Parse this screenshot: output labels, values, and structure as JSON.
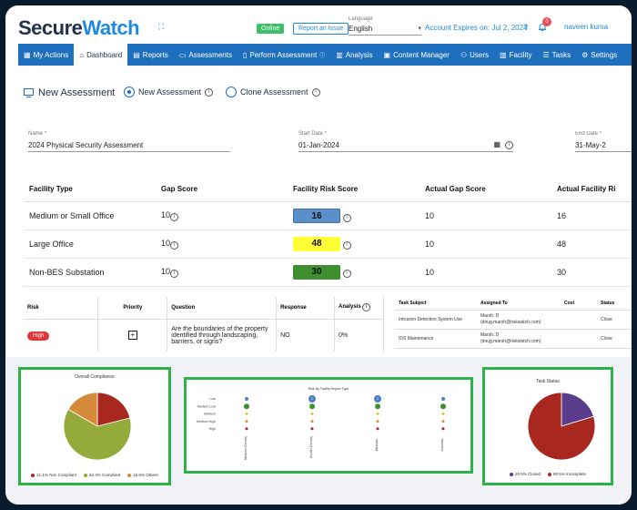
{
  "header": {
    "logo_part1": "Secure",
    "logo_part2": "Watch",
    "online": "Online",
    "report_issue": "Report an Issue",
    "language_label": "Language",
    "language_value": "English",
    "expires": "Account Expires on: Jul 2, 2024",
    "notifications": "0",
    "user": "naveen kuma"
  },
  "nav": [
    "My Actions",
    "Dashboard",
    "Reports",
    "Assessments",
    "Perform Assessment",
    "Analysis",
    "Content Manager",
    "Users",
    "Facility",
    "Tasks",
    "Settings"
  ],
  "assessment": {
    "title": "New Assessment",
    "radio_new": "New Assessment",
    "radio_clone": "Clone Assessment"
  },
  "fields": {
    "name_label": "Name *",
    "name_value": "2024 Physical Security Assessment",
    "start_label": "Start Date *",
    "start_value": "01-Jan-2024",
    "end_label": "End Date *",
    "end_value": "31-May-2"
  },
  "facility_table": {
    "headers": [
      "Facility Type",
      "Gap Score",
      "Facility Risk Score",
      "Actual Gap Score",
      "Actual Facility Ri"
    ],
    "rows": [
      {
        "type": "Medium or Small Office",
        "gap": "10",
        "risk": "16",
        "actual_gap": "10",
        "actual_risk": "16"
      },
      {
        "type": "Large Office",
        "gap": "10",
        "risk": "48",
        "actual_gap": "10",
        "actual_risk": "48"
      },
      {
        "type": "Non-BES Substation",
        "gap": "10",
        "risk": "30",
        "actual_gap": "10",
        "actual_risk": "30"
      }
    ],
    "colors": {
      "risk_16": "#5b8fc9",
      "risk_48": "#ffff33",
      "risk_30": "#3d8f2f"
    }
  },
  "risk_table": {
    "headers": [
      "Risk",
      "Priority",
      "Question",
      "Response",
      "Analysis"
    ],
    "row": {
      "risk": "High",
      "question": "Are the boundaries of the property identified through landscaping, barriers, or signs?",
      "response": "NO",
      "analysis": "0%"
    }
  },
  "tasks_table": {
    "headers": [
      "Task Subject",
      "Assigned To",
      "Cost",
      "Status"
    ],
    "rows": [
      {
        "subject": "Intrusion Detection System Use",
        "assigned": "Marsh, D (doug.marsh@riskwatch.com)",
        "cost": "",
        "status": "Close"
      },
      {
        "subject": "IDS Maintenance",
        "assigned": "Marsh, D (doug.marsh@riskwatch.com)",
        "cost": "",
        "status": "Close"
      }
    ]
  },
  "chart_data": [
    {
      "type": "pie",
      "title": "Overall Compliance",
      "slices": [
        {
          "label": "Non Compliant",
          "value": 21.1,
          "color": "#a8271f"
        },
        {
          "label": "Compliant",
          "value": 62.3,
          "color": "#94aa3b"
        },
        {
          "label": "Others",
          "value": 16.6,
          "color": "#d48a3a"
        }
      ],
      "legend_text": [
        "21.1%",
        "62.3%",
        "16.6%"
      ]
    },
    {
      "type": "scatter",
      "title": "Risk By Facility Region Type",
      "y_categories": [
        "Low",
        "Medium Low",
        "Medium",
        "Medium High",
        "High"
      ],
      "x_categories": [
        "Medium Density",
        "Border Density",
        "Metropo...",
        "Suburba..."
      ],
      "points": [
        {
          "x": 0,
          "y": 0,
          "size": 2,
          "color": "#4a7fc1"
        },
        {
          "x": 1,
          "y": 0,
          "size": 4,
          "color": "#4a7fc1",
          "label": "1"
        },
        {
          "x": 2,
          "y": 0,
          "size": 4,
          "color": "#4a7fc1",
          "label": "1"
        },
        {
          "x": 3,
          "y": 0,
          "size": 2,
          "color": "#4a7fc1"
        },
        {
          "x": 0,
          "y": 1,
          "size": 3,
          "color": "#3d8f2f"
        },
        {
          "x": 1,
          "y": 1,
          "size": 3,
          "color": "#3d8f2f"
        },
        {
          "x": 2,
          "y": 1,
          "size": 3,
          "color": "#3d8f2f"
        },
        {
          "x": 3,
          "y": 1,
          "size": 3,
          "color": "#3d8f2f"
        },
        {
          "x": 0,
          "y": 2,
          "size": 1.5,
          "color": "#cccc33"
        },
        {
          "x": 1,
          "y": 2,
          "size": 1.5,
          "color": "#cccc33"
        },
        {
          "x": 2,
          "y": 2,
          "size": 1.5,
          "color": "#cccc33"
        },
        {
          "x": 3,
          "y": 2,
          "size": 1.5,
          "color": "#cccc33"
        },
        {
          "x": 0,
          "y": 3,
          "size": 1.5,
          "color": "#d48a3a"
        },
        {
          "x": 1,
          "y": 3,
          "size": 1.5,
          "color": "#d48a3a"
        },
        {
          "x": 2,
          "y": 3,
          "size": 1.5,
          "color": "#d48a3a"
        },
        {
          "x": 3,
          "y": 3,
          "size": 1.5,
          "color": "#d48a3a"
        },
        {
          "x": 0,
          "y": 4,
          "size": 1.5,
          "color": "#a8271f"
        },
        {
          "x": 1,
          "y": 4,
          "size": 1.5,
          "color": "#a8271f"
        },
        {
          "x": 2,
          "y": 4,
          "size": 1.5,
          "color": "#a8271f"
        },
        {
          "x": 3,
          "y": 4,
          "size": 1.5,
          "color": "#a8271f"
        }
      ]
    },
    {
      "type": "pie",
      "title": "Task Status",
      "slices": [
        {
          "label": "Closed",
          "value": 20.5,
          "color": "#5a3d8a"
        },
        {
          "label": "Incomplete",
          "value": 80.5,
          "color": "#a8271f"
        }
      ],
      "legend_text": [
        "20.5%",
        "80.5%"
      ]
    }
  ]
}
